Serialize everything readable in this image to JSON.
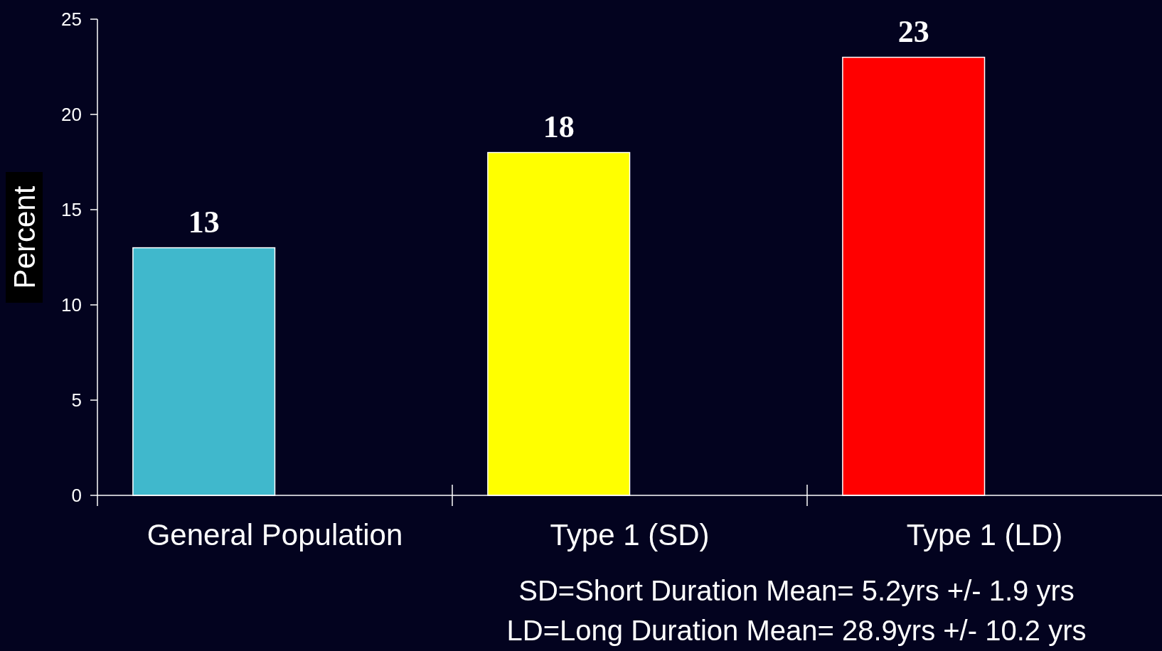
{
  "chart_data": {
    "type": "bar",
    "ylabel": "Percent",
    "categories": [
      "General Population",
      "Type 1 (SD)",
      "Type 1 (LD)"
    ],
    "values": [
      13,
      18,
      23
    ],
    "colors": [
      "#40b8cc",
      "#ffff00",
      "#ff0000"
    ],
    "ylim": [
      0,
      25
    ],
    "yticks": [
      0,
      5,
      10,
      15,
      20,
      25
    ],
    "data_labels": true,
    "annotations": [
      "SD=Short Duration Mean= 5.2yrs +/- 1.9 yrs",
      "LD=Long Duration Mean= 28.9yrs +/- 10.2 yrs"
    ]
  }
}
